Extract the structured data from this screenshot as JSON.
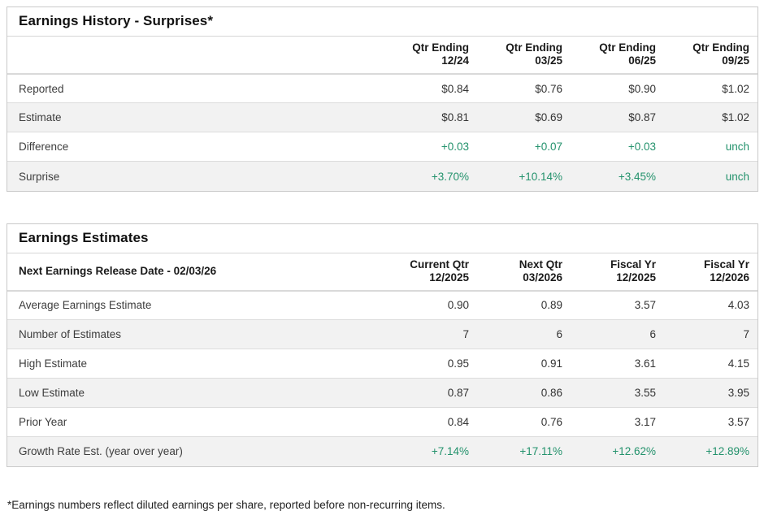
{
  "footnote": "*Earnings numbers reflect diluted earnings per share, reported before non-recurring items.",
  "colors": {
    "positive": "#23926c"
  },
  "history": {
    "title": "Earnings History - Surprises*",
    "corner_label": "",
    "columns": [
      {
        "line1": "Qtr Ending",
        "line2": "12/24"
      },
      {
        "line1": "Qtr Ending",
        "line2": "03/25"
      },
      {
        "line1": "Qtr Ending",
        "line2": "06/25"
      },
      {
        "line1": "Qtr Ending",
        "line2": "09/25"
      }
    ],
    "rows": [
      {
        "label": "Reported",
        "values": [
          "$0.84",
          "$0.76",
          "$0.90",
          "$1.02"
        ],
        "positive": false
      },
      {
        "label": "Estimate",
        "values": [
          "$0.81",
          "$0.69",
          "$0.87",
          "$1.02"
        ],
        "positive": false
      },
      {
        "label": "Difference",
        "values": [
          "+0.03",
          "+0.07",
          "+0.03",
          "unch"
        ],
        "positive": true
      },
      {
        "label": "Surprise",
        "values": [
          "+3.70%",
          "+10.14%",
          "+3.45%",
          "unch"
        ],
        "positive": true
      }
    ]
  },
  "estimates": {
    "title": "Earnings Estimates",
    "corner_label": "Next Earnings Release Date - 02/03/26",
    "columns": [
      {
        "line1": "Current Qtr",
        "line2": "12/2025"
      },
      {
        "line1": "Next Qtr",
        "line2": "03/2026"
      },
      {
        "line1": "Fiscal Yr",
        "line2": "12/2025"
      },
      {
        "line1": "Fiscal Yr",
        "line2": "12/2026"
      }
    ],
    "rows": [
      {
        "label": "Average Earnings Estimate",
        "values": [
          "0.90",
          "0.89",
          "3.57",
          "4.03"
        ],
        "positive": false
      },
      {
        "label": "Number of Estimates",
        "values": [
          "7",
          "6",
          "6",
          "7"
        ],
        "positive": false
      },
      {
        "label": "High Estimate",
        "values": [
          "0.95",
          "0.91",
          "3.61",
          "4.15"
        ],
        "positive": false
      },
      {
        "label": "Low Estimate",
        "values": [
          "0.87",
          "0.86",
          "3.55",
          "3.95"
        ],
        "positive": false
      },
      {
        "label": "Prior Year",
        "values": [
          "0.84",
          "0.76",
          "3.17",
          "3.57"
        ],
        "positive": false
      },
      {
        "label": "Growth Rate Est. (year over year)",
        "values": [
          "+7.14%",
          "+17.11%",
          "+12.62%",
          "+12.89%"
        ],
        "positive": true
      }
    ]
  }
}
